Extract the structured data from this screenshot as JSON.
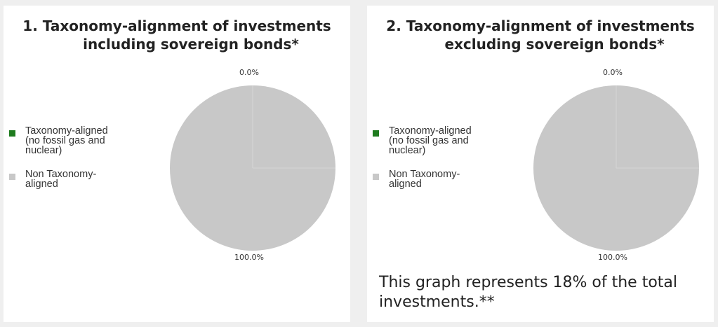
{
  "chart_data": [
    {
      "type": "pie",
      "title_line1": "1. Taxonomy-alignment of investments",
      "title_line2": "including sovereign bonds*",
      "legend_position": "left",
      "series": [
        {
          "name": "Taxonomy-aligned\n(no fossil gas and\nnuclear)",
          "value": 0.0,
          "label": "0.0%",
          "color": "#1e7b1e"
        },
        {
          "name": "Non Taxonomy-\naligned",
          "value": 100.0,
          "label": "100.0%",
          "color": "#c8c8c8"
        }
      ]
    },
    {
      "type": "pie",
      "title_line1": "2. Taxonomy-alignment of investments",
      "title_line2": "excluding sovereign bonds*",
      "legend_position": "left",
      "series": [
        {
          "name": "Taxonomy-aligned\n(no fossil gas and\nnuclear)",
          "value": 0.0,
          "label": "0.0%",
          "color": "#1e7b1e"
        },
        {
          "name": "Non Taxonomy-\naligned",
          "value": 100.0,
          "label": "100.0%",
          "color": "#c8c8c8"
        }
      ]
    }
  ],
  "note": "This graph represents 18% of the total investments.**"
}
